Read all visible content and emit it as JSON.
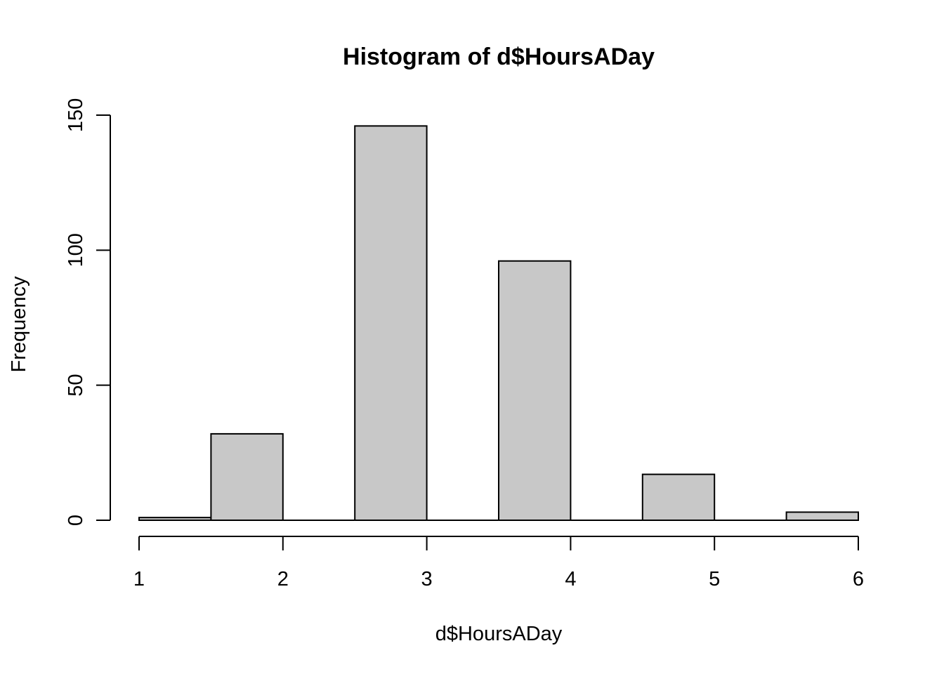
{
  "chart_data": {
    "type": "bar",
    "title": "Histogram of d$HoursADay",
    "xlabel": "d$HoursADay",
    "ylabel": "Frequency",
    "bins": [
      {
        "x0": 1.0,
        "x1": 1.5,
        "count": 1
      },
      {
        "x0": 1.5,
        "x1": 2.0,
        "count": 32
      },
      {
        "x0": 2.0,
        "x1": 2.5,
        "count": 0
      },
      {
        "x0": 2.5,
        "x1": 3.0,
        "count": 146
      },
      {
        "x0": 3.0,
        "x1": 3.5,
        "count": 0
      },
      {
        "x0": 3.5,
        "x1": 4.0,
        "count": 96
      },
      {
        "x0": 4.0,
        "x1": 4.5,
        "count": 0
      },
      {
        "x0": 4.5,
        "x1": 5.0,
        "count": 17
      },
      {
        "x0": 5.0,
        "x1": 5.5,
        "count": 0
      },
      {
        "x0": 5.5,
        "x1": 6.0,
        "count": 3
      }
    ],
    "xlim": [
      1,
      6
    ],
    "ylim": [
      0,
      150
    ],
    "xticks": [
      "1",
      "2",
      "3",
      "4",
      "5",
      "6"
    ],
    "yticks": [
      "0",
      "50",
      "100",
      "150"
    ],
    "grid": false,
    "bar_color": "#c8c8c8",
    "edge_color": "#000000"
  }
}
